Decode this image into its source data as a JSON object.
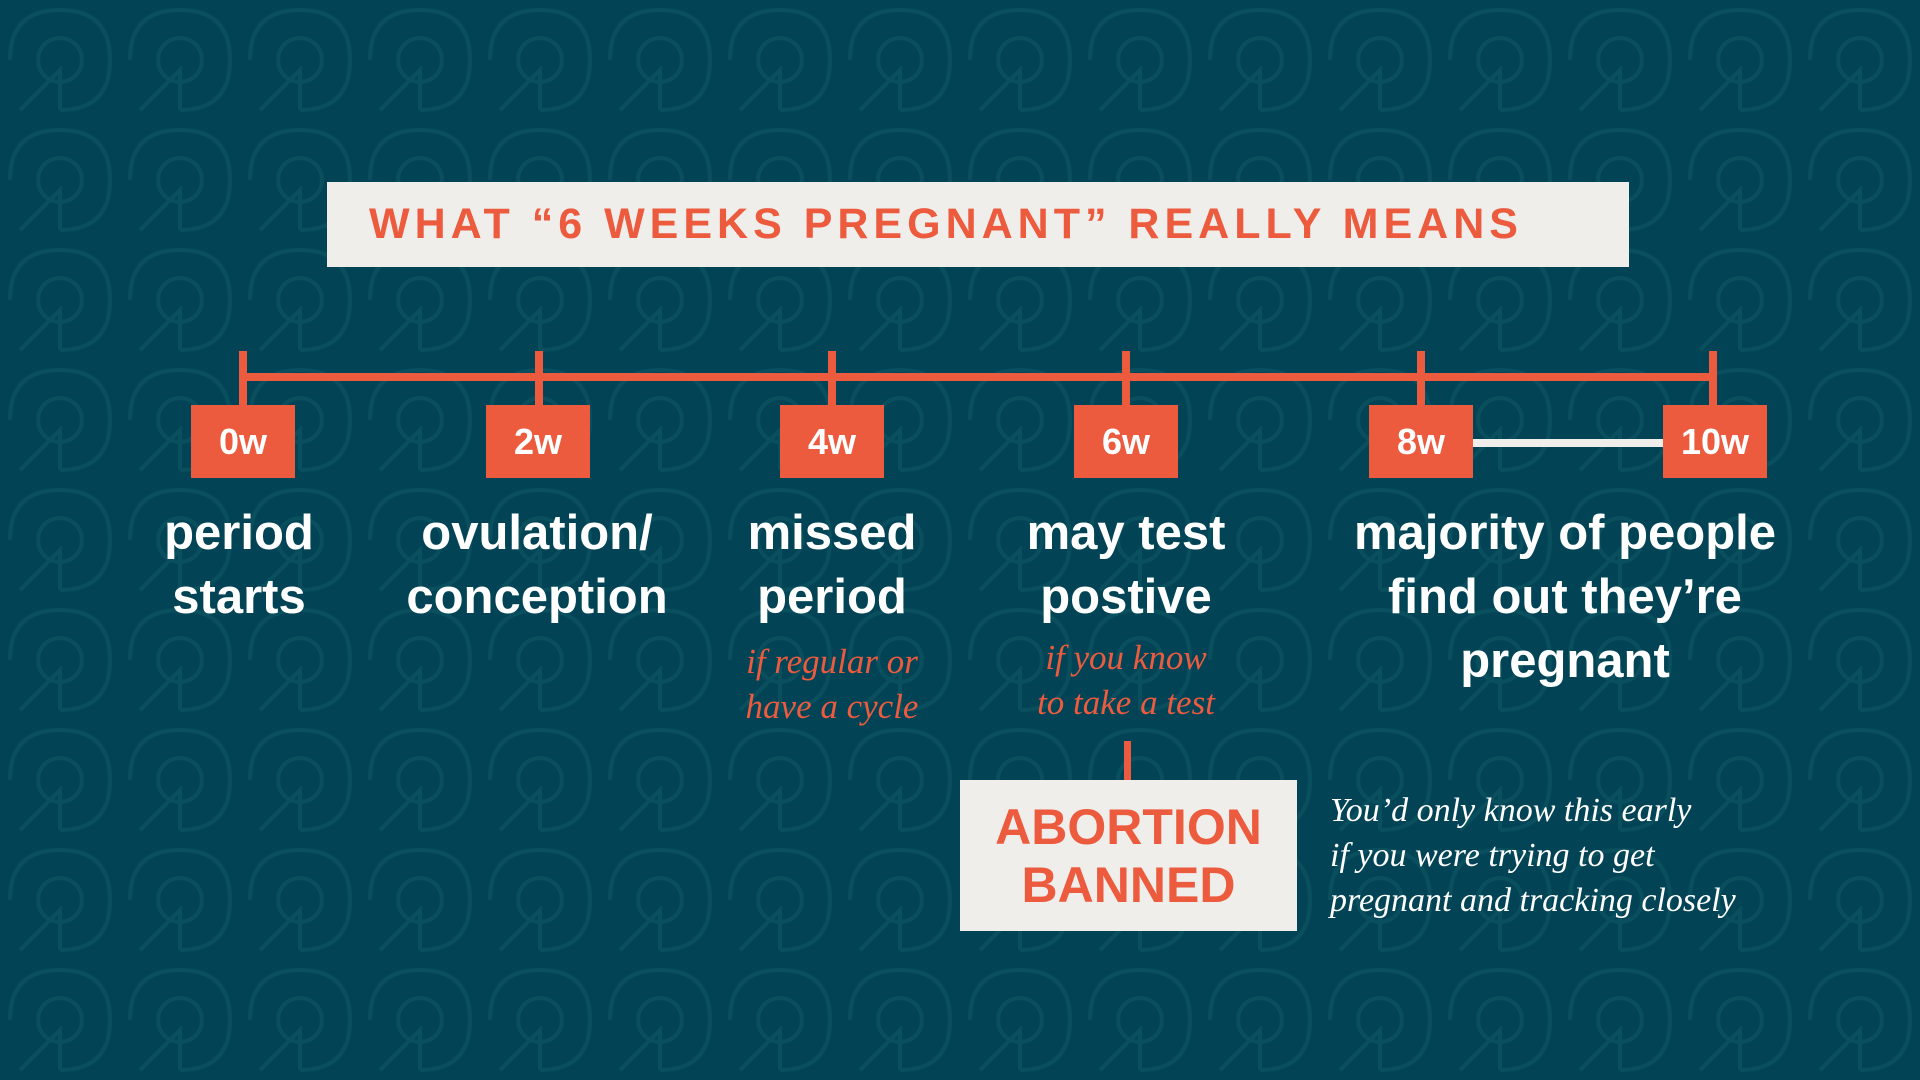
{
  "title": "WHAT “6 WEEKS PREGNANT” REALLY MEANS",
  "colors": {
    "background": "#024455",
    "accent": "#ed5b3f",
    "light": "#f0eeeb",
    "text": "#ffffff"
  },
  "timeline": {
    "weeks": [
      "0w",
      "2w",
      "4w",
      "6w",
      "8w",
      "10w"
    ],
    "milestones": [
      {
        "week": "0w",
        "label": [
          "period",
          "starts"
        ]
      },
      {
        "week": "2w",
        "label": [
          "ovulation/",
          "conception"
        ]
      },
      {
        "week": "4w",
        "label": [
          "missed",
          "period"
        ],
        "note": [
          "if regular or",
          "have a cycle"
        ]
      },
      {
        "week": "6w",
        "label": [
          "may test",
          "postive"
        ],
        "note": [
          "if you know",
          "to take a test"
        ]
      },
      {
        "week": "8w–10w",
        "label": [
          "majority of people",
          "find out they’re",
          "pregnant"
        ]
      }
    ]
  },
  "banned": [
    "ABORTION",
    "BANNED"
  ],
  "side_note": [
    "You’d only know this early",
    "if you were trying to get",
    "pregnant and tracking closely"
  ]
}
